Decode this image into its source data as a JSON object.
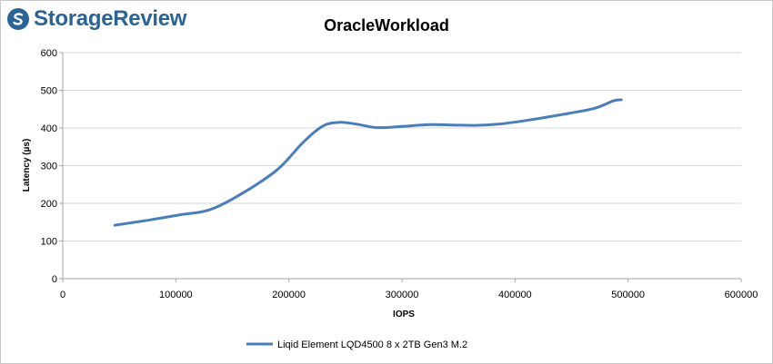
{
  "brand": {
    "name": "StorageReview",
    "color": "#2a6496"
  },
  "chart_data": {
    "type": "line",
    "title": "OracleWorkload",
    "xlabel": "IOPS",
    "ylabel": "Latency (µs)",
    "xlim": [
      0,
      600000
    ],
    "ylim": [
      0,
      600
    ],
    "xticks": [
      0,
      100000,
      200000,
      300000,
      400000,
      500000,
      600000
    ],
    "yticks": [
      0,
      100,
      200,
      300,
      400,
      500,
      600
    ],
    "grid": "horizontal",
    "legend_position": "bottom",
    "series": [
      {
        "name": "Liqid Element LQD4500 8 x 2TB Gen3 M.2",
        "color": "#4a7ebb",
        "x": [
          46000,
          75000,
          105000,
          130000,
          158000,
          190000,
          212000,
          230000,
          245000,
          260000,
          278000,
          300000,
          325000,
          345000,
          365000,
          385000,
          410000,
          440000,
          470000,
          487000,
          494000
        ],
        "y": [
          142,
          155,
          170,
          183,
          225,
          290,
          360,
          405,
          415,
          410,
          401,
          404,
          409,
          408,
          407,
          410,
          420,
          435,
          452,
          472,
          475
        ]
      }
    ]
  }
}
